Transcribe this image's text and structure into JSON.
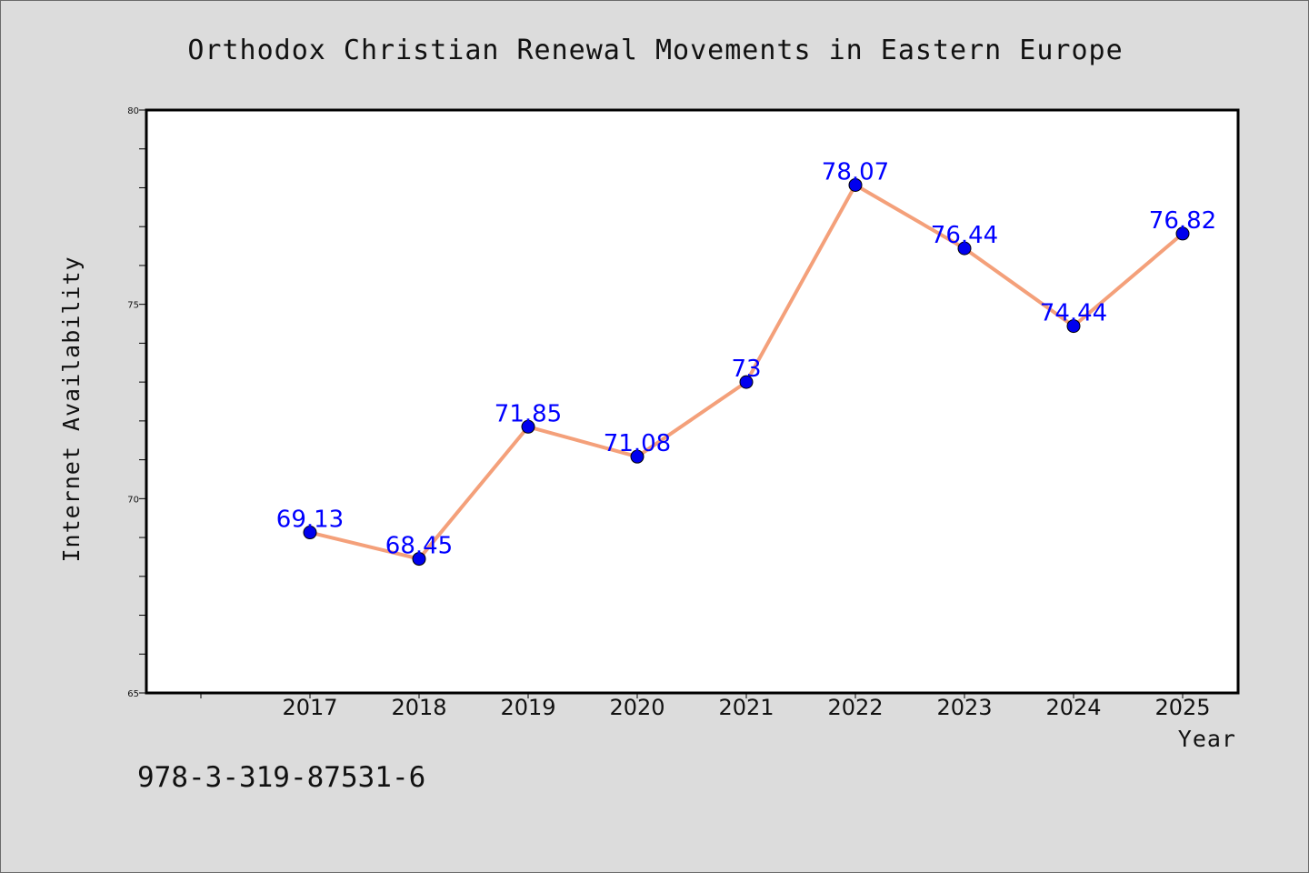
{
  "chart_data": {
    "type": "line",
    "title": "Orthodox Christian Renewal Movements in Eastern Europe",
    "xlabel": "Year",
    "ylabel": "Internet Availability",
    "categories": [
      "2017",
      "2018",
      "2019",
      "2020",
      "2021",
      "2022",
      "2023",
      "2024",
      "2025"
    ],
    "series": [
      {
        "values": [
          69.13,
          68.45,
          71.85,
          71.08,
          73,
          78.07,
          76.44,
          74.44,
          76.82
        ],
        "data_labels": [
          "69.13",
          "68.45",
          "71.85",
          "71.08",
          "73",
          "78.07",
          "76.44",
          "74.44",
          "76.82"
        ],
        "line_color": "#f4a07a",
        "marker_color": "#0000ee",
        "label_color": "#0000ff"
      }
    ],
    "ylim": [
      65,
      80
    ],
    "y_ticks": [
      "65",
      "70",
      "75",
      "80"
    ],
    "grid": false,
    "legend": "none"
  },
  "footer": {
    "text": "978-3-319-87531-6"
  },
  "colors": {
    "background": "#dcdcdc",
    "plot_background": "#ffffff",
    "axis": "#000000"
  }
}
